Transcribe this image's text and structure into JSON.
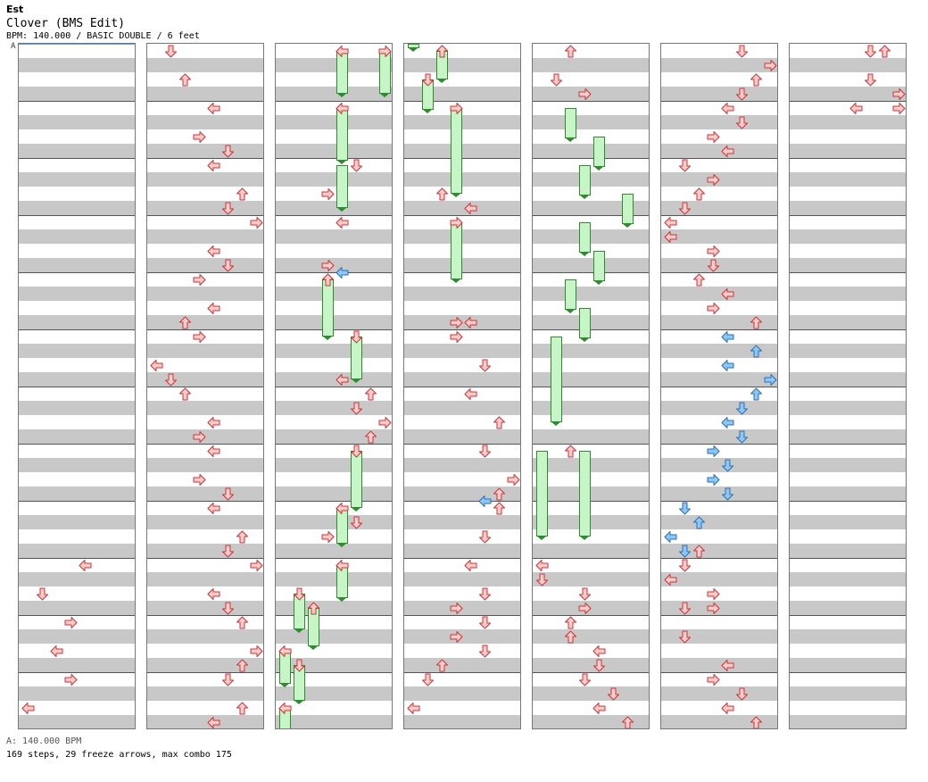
{
  "header": {
    "artist": "Est",
    "title": "Clover (BMS Edit)",
    "info": "BPM: 140.000 / BASIC DOUBLE / 6 feet",
    "section_label": "A"
  },
  "footer": {
    "bpm": "A: 140.000 BPM",
    "stats": "169 steps, 29 freeze arrows, max combo 175"
  },
  "colors": {
    "note": "#ffcccc",
    "note_alt": "#8ec6f5",
    "freeze": "#c8f5c8",
    "stripe": "#c8c8c8"
  },
  "chart": {
    "columns": 7,
    "measures_per_column": 12,
    "lanes": 8,
    "notes": [
      {
        "col": 0,
        "pos": 36.5,
        "lane": 4,
        "dir": "left"
      },
      {
        "col": 0,
        "pos": 38.5,
        "lane": 1,
        "dir": "down"
      },
      {
        "col": 0,
        "pos": 40.5,
        "lane": 3,
        "dir": "right"
      },
      {
        "col": 0,
        "pos": 42.5,
        "lane": 2,
        "dir": "left"
      },
      {
        "col": 0,
        "pos": 44.5,
        "lane": 3,
        "dir": "right"
      },
      {
        "col": 0,
        "pos": 46.5,
        "lane": 0,
        "dir": "left"
      },
      {
        "col": 1,
        "pos": 0.5,
        "lane": 1,
        "dir": "down"
      },
      {
        "col": 1,
        "pos": 2.5,
        "lane": 2,
        "dir": "up"
      },
      {
        "col": 1,
        "pos": 4.5,
        "lane": 4,
        "dir": "left"
      },
      {
        "col": 1,
        "pos": 6.5,
        "lane": 3,
        "dir": "right"
      },
      {
        "col": 1,
        "pos": 7.5,
        "lane": 5,
        "dir": "down"
      },
      {
        "col": 1,
        "pos": 8.5,
        "lane": 4,
        "dir": "left"
      },
      {
        "col": 1,
        "pos": 10.5,
        "lane": 6,
        "dir": "up"
      },
      {
        "col": 1,
        "pos": 11.5,
        "lane": 5,
        "dir": "down"
      },
      {
        "col": 1,
        "pos": 12.5,
        "lane": 7,
        "dir": "right"
      },
      {
        "col": 1,
        "pos": 14.5,
        "lane": 4,
        "dir": "left"
      },
      {
        "col": 1,
        "pos": 15.5,
        "lane": 5,
        "dir": "down"
      },
      {
        "col": 1,
        "pos": 16.5,
        "lane": 3,
        "dir": "right"
      },
      {
        "col": 1,
        "pos": 18.5,
        "lane": 4,
        "dir": "left"
      },
      {
        "col": 1,
        "pos": 19.5,
        "lane": 2,
        "dir": "up"
      },
      {
        "col": 1,
        "pos": 20.5,
        "lane": 3,
        "dir": "right"
      },
      {
        "col": 1,
        "pos": 22.5,
        "lane": 0,
        "dir": "left"
      },
      {
        "col": 1,
        "pos": 23.5,
        "lane": 1,
        "dir": "down"
      },
      {
        "col": 1,
        "pos": 24.5,
        "lane": 2,
        "dir": "up"
      },
      {
        "col": 1,
        "pos": 26.5,
        "lane": 4,
        "dir": "left"
      },
      {
        "col": 1,
        "pos": 27.5,
        "lane": 3,
        "dir": "right"
      },
      {
        "col": 1,
        "pos": 28.5,
        "lane": 4,
        "dir": "left"
      },
      {
        "col": 1,
        "pos": 30.5,
        "lane": 3,
        "dir": "right"
      },
      {
        "col": 1,
        "pos": 31.5,
        "lane": 5,
        "dir": "down"
      },
      {
        "col": 1,
        "pos": 32.5,
        "lane": 4,
        "dir": "left"
      },
      {
        "col": 1,
        "pos": 34.5,
        "lane": 6,
        "dir": "up"
      },
      {
        "col": 1,
        "pos": 35.5,
        "lane": 5,
        "dir": "down"
      },
      {
        "col": 1,
        "pos": 36.5,
        "lane": 7,
        "dir": "right"
      },
      {
        "col": 1,
        "pos": 38.5,
        "lane": 4,
        "dir": "left"
      },
      {
        "col": 1,
        "pos": 39.5,
        "lane": 5,
        "dir": "down"
      },
      {
        "col": 1,
        "pos": 40.5,
        "lane": 6,
        "dir": "up"
      },
      {
        "col": 1,
        "pos": 42.5,
        "lane": 7,
        "dir": "right"
      },
      {
        "col": 1,
        "pos": 43.5,
        "lane": 6,
        "dir": "up"
      },
      {
        "col": 1,
        "pos": 44.5,
        "lane": 5,
        "dir": "down"
      },
      {
        "col": 1,
        "pos": 46.5,
        "lane": 6,
        "dir": "up"
      },
      {
        "col": 1,
        "pos": 47.5,
        "lane": 4,
        "dir": "left"
      },
      {
        "col": 2,
        "pos": 0.5,
        "lane": 4,
        "dir": "left"
      },
      {
        "col": 2,
        "pos": 0.5,
        "lane": 7,
        "dir": "right"
      },
      {
        "col": 2,
        "pos": 4.5,
        "lane": 4,
        "dir": "left"
      },
      {
        "col": 2,
        "pos": 8.5,
        "lane": 5,
        "dir": "down"
      },
      {
        "col": 2,
        "pos": 10.5,
        "lane": 3,
        "dir": "right"
      },
      {
        "col": 2,
        "pos": 12.5,
        "lane": 4,
        "dir": "left"
      },
      {
        "col": 2,
        "pos": 15.5,
        "lane": 3,
        "dir": "right"
      },
      {
        "col": 2,
        "pos": 16,
        "lane": 4,
        "dir": "left",
        "c": "blue"
      },
      {
        "col": 2,
        "pos": 16.5,
        "lane": 3,
        "dir": "up"
      },
      {
        "col": 2,
        "pos": 20.5,
        "lane": 5,
        "dir": "down"
      },
      {
        "col": 2,
        "pos": 23.5,
        "lane": 4,
        "dir": "left"
      },
      {
        "col": 2,
        "pos": 24.5,
        "lane": 6,
        "dir": "up"
      },
      {
        "col": 2,
        "pos": 25.5,
        "lane": 5,
        "dir": "down"
      },
      {
        "col": 2,
        "pos": 26.5,
        "lane": 7,
        "dir": "right"
      },
      {
        "col": 2,
        "pos": 27.5,
        "lane": 6,
        "dir": "up"
      },
      {
        "col": 2,
        "pos": 28.5,
        "lane": 5,
        "dir": "down"
      },
      {
        "col": 2,
        "pos": 32.5,
        "lane": 4,
        "dir": "left"
      },
      {
        "col": 2,
        "pos": 33.5,
        "lane": 5,
        "dir": "down"
      },
      {
        "col": 2,
        "pos": 34.5,
        "lane": 3,
        "dir": "right"
      },
      {
        "col": 2,
        "pos": 36.5,
        "lane": 4,
        "dir": "left"
      },
      {
        "col": 2,
        "pos": 38.5,
        "lane": 1,
        "dir": "down"
      },
      {
        "col": 2,
        "pos": 39.5,
        "lane": 2,
        "dir": "up"
      },
      {
        "col": 2,
        "pos": 42.5,
        "lane": 0,
        "dir": "left"
      },
      {
        "col": 2,
        "pos": 43.5,
        "lane": 1,
        "dir": "down"
      },
      {
        "col": 2,
        "pos": 46.5,
        "lane": 0,
        "dir": "left"
      },
      {
        "col": 3,
        "pos": 0.5,
        "lane": 2,
        "dir": "up"
      },
      {
        "col": 3,
        "pos": 2.5,
        "lane": 1,
        "dir": "down"
      },
      {
        "col": 3,
        "pos": 4.5,
        "lane": 3,
        "dir": "right"
      },
      {
        "col": 3,
        "pos": 10.5,
        "lane": 2,
        "dir": "up"
      },
      {
        "col": 3,
        "pos": 11.5,
        "lane": 4,
        "dir": "left"
      },
      {
        "col": 3,
        "pos": 12.5,
        "lane": 3,
        "dir": "right"
      },
      {
        "col": 3,
        "pos": 19.5,
        "lane": 3,
        "dir": "right"
      },
      {
        "col": 3,
        "pos": 19.5,
        "lane": 4,
        "dir": "left"
      },
      {
        "col": 3,
        "pos": 20.5,
        "lane": 3,
        "dir": "right"
      },
      {
        "col": 3,
        "pos": 22.5,
        "lane": 5,
        "dir": "down"
      },
      {
        "col": 3,
        "pos": 24.5,
        "lane": 4,
        "dir": "left"
      },
      {
        "col": 3,
        "pos": 26.5,
        "lane": 6,
        "dir": "up"
      },
      {
        "col": 3,
        "pos": 28.5,
        "lane": 5,
        "dir": "down"
      },
      {
        "col": 3,
        "pos": 30.5,
        "lane": 7,
        "dir": "right"
      },
      {
        "col": 3,
        "pos": 31.5,
        "lane": 6,
        "dir": "up"
      },
      {
        "col": 3,
        "pos": 32,
        "lane": 5,
        "dir": "left",
        "c": "blue"
      },
      {
        "col": 3,
        "pos": 32.5,
        "lane": 6,
        "dir": "up"
      },
      {
        "col": 3,
        "pos": 34.5,
        "lane": 5,
        "dir": "down"
      },
      {
        "col": 3,
        "pos": 36.5,
        "lane": 4,
        "dir": "left"
      },
      {
        "col": 3,
        "pos": 38.5,
        "lane": 5,
        "dir": "down"
      },
      {
        "col": 3,
        "pos": 39.5,
        "lane": 3,
        "dir": "right"
      },
      {
        "col": 3,
        "pos": 40.5,
        "lane": 5,
        "dir": "down"
      },
      {
        "col": 3,
        "pos": 41.5,
        "lane": 3,
        "dir": "right"
      },
      {
        "col": 3,
        "pos": 42.5,
        "lane": 5,
        "dir": "down"
      },
      {
        "col": 3,
        "pos": 43.5,
        "lane": 2,
        "dir": "up"
      },
      {
        "col": 3,
        "pos": 44.5,
        "lane": 1,
        "dir": "down"
      },
      {
        "col": 3,
        "pos": 46.5,
        "lane": 0,
        "dir": "left"
      },
      {
        "col": 4,
        "pos": 0.5,
        "lane": 2,
        "dir": "up"
      },
      {
        "col": 4,
        "pos": 2.5,
        "lane": 1,
        "dir": "down"
      },
      {
        "col": 4,
        "pos": 3.5,
        "lane": 3,
        "dir": "right"
      },
      {
        "col": 4,
        "pos": 28.5,
        "lane": 2,
        "dir": "up"
      },
      {
        "col": 4,
        "pos": 36.5,
        "lane": 0,
        "dir": "left"
      },
      {
        "col": 4,
        "pos": 37.5,
        "lane": 0,
        "dir": "down"
      },
      {
        "col": 4,
        "pos": 38.5,
        "lane": 3,
        "dir": "down"
      },
      {
        "col": 4,
        "pos": 39.5,
        "lane": 3,
        "dir": "right"
      },
      {
        "col": 4,
        "pos": 40.5,
        "lane": 2,
        "dir": "up"
      },
      {
        "col": 4,
        "pos": 41.5,
        "lane": 2,
        "dir": "up"
      },
      {
        "col": 4,
        "pos": 42.5,
        "lane": 4,
        "dir": "left"
      },
      {
        "col": 4,
        "pos": 43.5,
        "lane": 4,
        "dir": "down"
      },
      {
        "col": 4,
        "pos": 44.5,
        "lane": 3,
        "dir": "down"
      },
      {
        "col": 4,
        "pos": 45.5,
        "lane": 5,
        "dir": "down"
      },
      {
        "col": 4,
        "pos": 46.5,
        "lane": 4,
        "dir": "left"
      },
      {
        "col": 4,
        "pos": 47.5,
        "lane": 6,
        "dir": "up"
      },
      {
        "col": 5,
        "pos": 0.5,
        "lane": 5,
        "dir": "down"
      },
      {
        "col": 5,
        "pos": 1.5,
        "lane": 7,
        "dir": "right"
      },
      {
        "col": 5,
        "pos": 2.5,
        "lane": 6,
        "dir": "up"
      },
      {
        "col": 5,
        "pos": 3.5,
        "lane": 5,
        "dir": "down"
      },
      {
        "col": 5,
        "pos": 4.5,
        "lane": 4,
        "dir": "left"
      },
      {
        "col": 5,
        "pos": 5.5,
        "lane": 5,
        "dir": "down"
      },
      {
        "col": 5,
        "pos": 6.5,
        "lane": 3,
        "dir": "right"
      },
      {
        "col": 5,
        "pos": 7.5,
        "lane": 4,
        "dir": "left"
      },
      {
        "col": 5,
        "pos": 8.5,
        "lane": 1,
        "dir": "down"
      },
      {
        "col": 5,
        "pos": 9.5,
        "lane": 3,
        "dir": "right"
      },
      {
        "col": 5,
        "pos": 10.5,
        "lane": 2,
        "dir": "up"
      },
      {
        "col": 5,
        "pos": 11.5,
        "lane": 1,
        "dir": "down"
      },
      {
        "col": 5,
        "pos": 12.5,
        "lane": 0,
        "dir": "left"
      },
      {
        "col": 5,
        "pos": 13.5,
        "lane": 0,
        "dir": "left"
      },
      {
        "col": 5,
        "pos": 14.5,
        "lane": 3,
        "dir": "right"
      },
      {
        "col": 5,
        "pos": 15.5,
        "lane": 3,
        "dir": "down"
      },
      {
        "col": 5,
        "pos": 16.5,
        "lane": 2,
        "dir": "up"
      },
      {
        "col": 5,
        "pos": 17.5,
        "lane": 4,
        "dir": "left"
      },
      {
        "col": 5,
        "pos": 18.5,
        "lane": 3,
        "dir": "right"
      },
      {
        "col": 5,
        "pos": 19.5,
        "lane": 6,
        "dir": "up"
      },
      {
        "col": 5,
        "pos": 20.5,
        "lane": 4,
        "dir": "left",
        "c": "blue"
      },
      {
        "col": 5,
        "pos": 22.5,
        "lane": 4,
        "dir": "left",
        "c": "blue"
      },
      {
        "col": 5,
        "pos": 21.5,
        "lane": 6,
        "dir": "up",
        "c": "blue"
      },
      {
        "col": 5,
        "pos": 23.5,
        "lane": 7,
        "dir": "right",
        "c": "blue"
      },
      {
        "col": 5,
        "pos": 24.5,
        "lane": 6,
        "dir": "up",
        "c": "blue"
      },
      {
        "col": 5,
        "pos": 25.5,
        "lane": 5,
        "dir": "down",
        "c": "blue"
      },
      {
        "col": 5,
        "pos": 26.5,
        "lane": 4,
        "dir": "left",
        "c": "blue"
      },
      {
        "col": 5,
        "pos": 27.5,
        "lane": 5,
        "dir": "down",
        "c": "blue"
      },
      {
        "col": 5,
        "pos": 28.5,
        "lane": 3,
        "dir": "right",
        "c": "blue"
      },
      {
        "col": 5,
        "pos": 29.5,
        "lane": 4,
        "dir": "down",
        "c": "blue"
      },
      {
        "col": 5,
        "pos": 30.5,
        "lane": 3,
        "dir": "right",
        "c": "blue"
      },
      {
        "col": 5,
        "pos": 31.5,
        "lane": 4,
        "dir": "down",
        "c": "blue"
      },
      {
        "col": 5,
        "pos": 32.5,
        "lane": 1,
        "dir": "down",
        "c": "blue"
      },
      {
        "col": 5,
        "pos": 33.5,
        "lane": 2,
        "dir": "up",
        "c": "blue"
      },
      {
        "col": 5,
        "pos": 34.5,
        "lane": 0,
        "dir": "left",
        "c": "blue"
      },
      {
        "col": 5,
        "pos": 35.5,
        "lane": 1,
        "dir": "down",
        "c": "blue"
      },
      {
        "col": 5,
        "pos": 35.5,
        "lane": 2,
        "dir": "up"
      },
      {
        "col": 5,
        "pos": 36.5,
        "lane": 1,
        "dir": "down"
      },
      {
        "col": 5,
        "pos": 37.5,
        "lane": 0,
        "dir": "left"
      },
      {
        "col": 5,
        "pos": 38.5,
        "lane": 3,
        "dir": "right"
      },
      {
        "col": 5,
        "pos": 39.5,
        "lane": 1,
        "dir": "down"
      },
      {
        "col": 5,
        "pos": 39.5,
        "lane": 3,
        "dir": "right"
      },
      {
        "col": 5,
        "pos": 41.5,
        "lane": 1,
        "dir": "down"
      },
      {
        "col": 5,
        "pos": 43.5,
        "lane": 4,
        "dir": "left"
      },
      {
        "col": 5,
        "pos": 44.5,
        "lane": 3,
        "dir": "right"
      },
      {
        "col": 5,
        "pos": 45.5,
        "lane": 5,
        "dir": "down"
      },
      {
        "col": 5,
        "pos": 46.5,
        "lane": 4,
        "dir": "left"
      },
      {
        "col": 5,
        "pos": 47.5,
        "lane": 6,
        "dir": "up"
      },
      {
        "col": 6,
        "pos": 0.5,
        "lane": 5,
        "dir": "down"
      },
      {
        "col": 6,
        "pos": 0.5,
        "lane": 6,
        "dir": "up"
      },
      {
        "col": 6,
        "pos": 2.5,
        "lane": 5,
        "dir": "down"
      },
      {
        "col": 6,
        "pos": 3.5,
        "lane": 7,
        "dir": "right"
      },
      {
        "col": 6,
        "pos": 4.5,
        "lane": 4,
        "dir": "left"
      },
      {
        "col": 6,
        "pos": 4.5,
        "lane": 7,
        "dir": "right"
      }
    ],
    "freezes": [
      {
        "col": 2,
        "lane": 4,
        "start": 0.5,
        "end": 3.5
      },
      {
        "col": 2,
        "lane": 7,
        "start": 0.5,
        "end": 3.5
      },
      {
        "col": 2,
        "lane": 4,
        "start": 4.5,
        "end": 8.2
      },
      {
        "col": 2,
        "lane": 4,
        "start": 8.5,
        "end": 11.5
      },
      {
        "col": 2,
        "lane": 3,
        "start": 16.5,
        "end": 20.5
      },
      {
        "col": 2,
        "lane": 5,
        "start": 20.5,
        "end": 23.5
      },
      {
        "col": 2,
        "lane": 5,
        "start": 28.5,
        "end": 32.5
      },
      {
        "col": 2,
        "lane": 4,
        "start": 32.5,
        "end": 35
      },
      {
        "col": 2,
        "lane": 4,
        "start": 36.5,
        "end": 38.8
      },
      {
        "col": 2,
        "lane": 1,
        "start": 38.5,
        "end": 41
      },
      {
        "col": 2,
        "lane": 2,
        "start": 39.5,
        "end": 42.2
      },
      {
        "col": 2,
        "lane": 0,
        "start": 42.5,
        "end": 44.8
      },
      {
        "col": 2,
        "lane": 1,
        "start": 43.5,
        "end": 46
      },
      {
        "col": 2,
        "lane": 0,
        "start": 46.5,
        "end": 48
      },
      {
        "col": 3,
        "lane": 0,
        "start": 0,
        "end": 0.3
      },
      {
        "col": 3,
        "lane": 2,
        "start": 0.5,
        "end": 2.5
      },
      {
        "col": 3,
        "lane": 1,
        "start": 2.5,
        "end": 4.6
      },
      {
        "col": 3,
        "lane": 3,
        "start": 4.5,
        "end": 10.5
      },
      {
        "col": 3,
        "lane": 3,
        "start": 12.5,
        "end": 16.5
      },
      {
        "col": 4,
        "lane": 2,
        "start": 4.5,
        "end": 6.6
      },
      {
        "col": 4,
        "lane": 4,
        "start": 6.5,
        "end": 8.6
      },
      {
        "col": 4,
        "lane": 3,
        "start": 8.5,
        "end": 10.6
      },
      {
        "col": 4,
        "lane": 6,
        "start": 10.5,
        "end": 12.6
      },
      {
        "col": 4,
        "lane": 3,
        "start": 12.5,
        "end": 14.6
      },
      {
        "col": 4,
        "lane": 4,
        "start": 14.5,
        "end": 16.6
      },
      {
        "col": 4,
        "lane": 2,
        "start": 16.5,
        "end": 18.6
      },
      {
        "col": 4,
        "lane": 3,
        "start": 18.5,
        "end": 20.6
      },
      {
        "col": 4,
        "lane": 1,
        "start": 20.5,
        "end": 26.5
      },
      {
        "col": 4,
        "lane": 0,
        "start": 28.5,
        "end": 34.5
      },
      {
        "col": 4,
        "lane": 3,
        "start": 28.5,
        "end": 34.5
      }
    ]
  }
}
